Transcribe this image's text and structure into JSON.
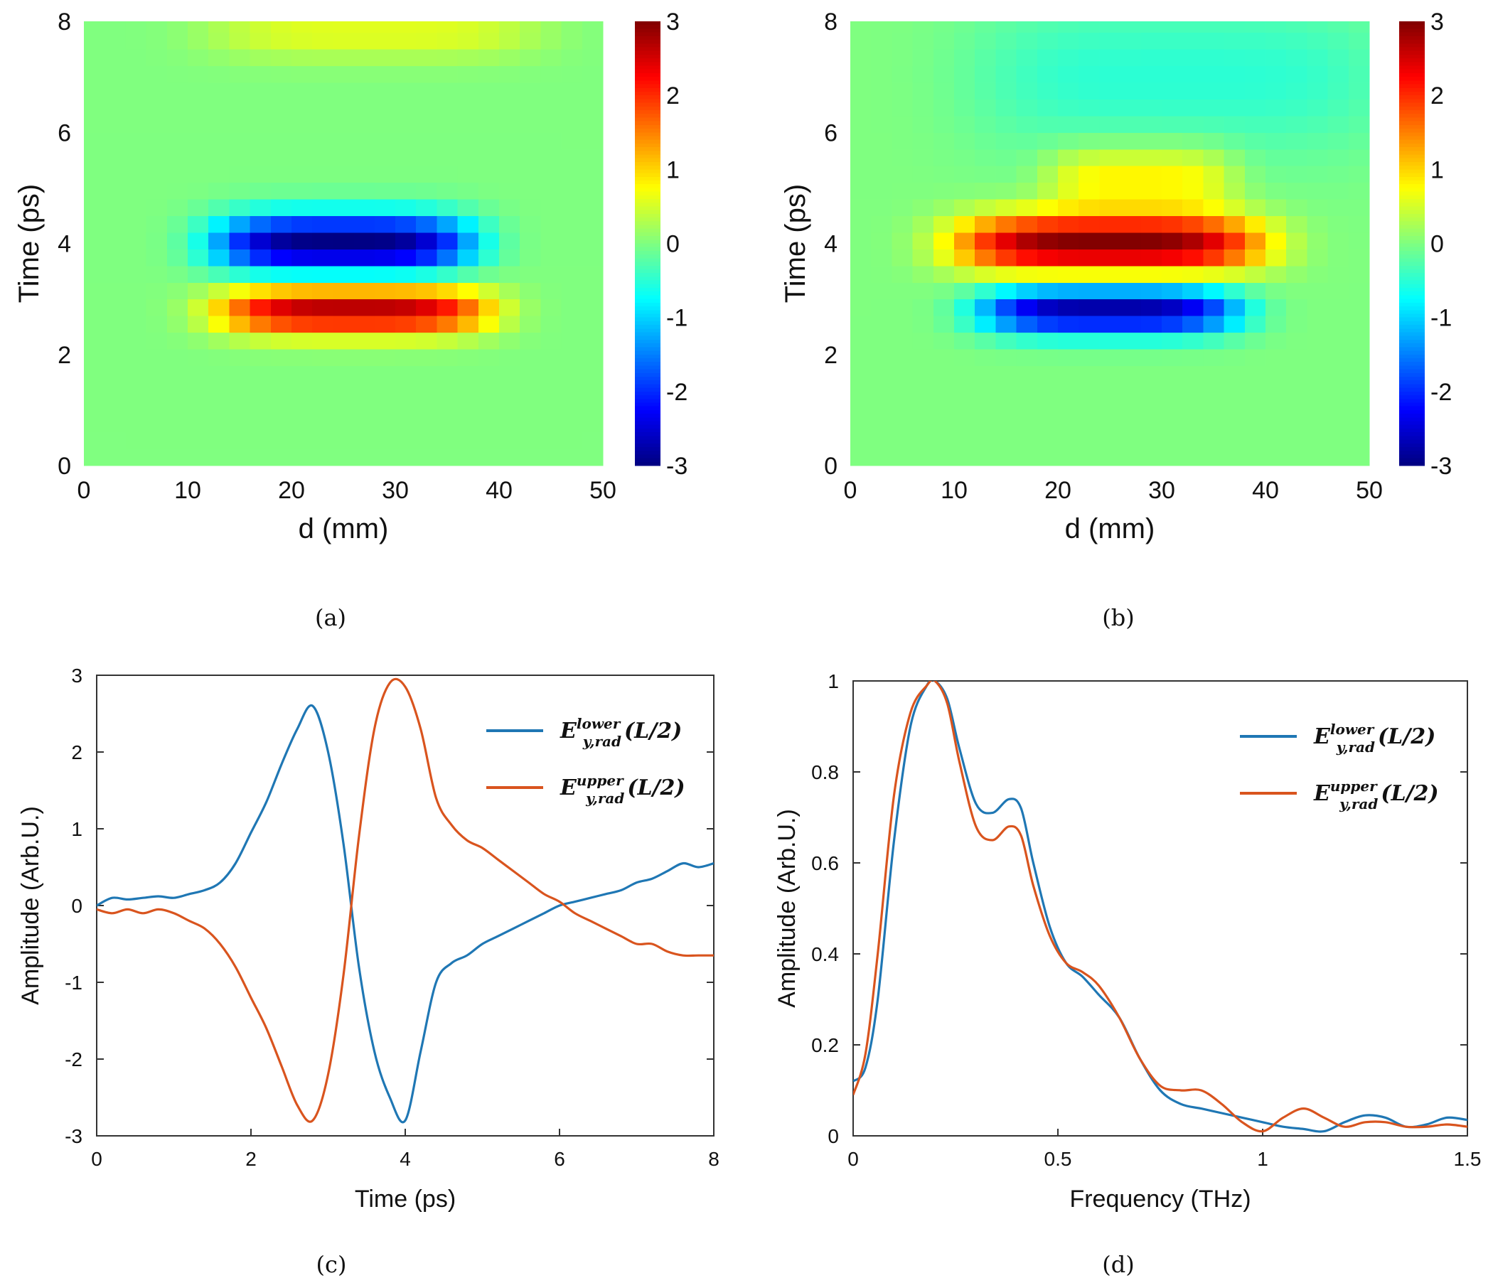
{
  "chart_data": [
    {
      "id": "a",
      "type": "heatmap",
      "caption": "(a)",
      "xlabel": "d (mm)",
      "ylabel": "Time (ps)",
      "xlim": [
        0,
        50
      ],
      "ylim": [
        0,
        8
      ],
      "xticks": [
        0,
        10,
        20,
        30,
        40,
        50
      ],
      "yticks": [
        0,
        2,
        4,
        6,
        8
      ],
      "colorbar": {
        "min": -3,
        "max": 3,
        "ticks": [
          3,
          2,
          1,
          0,
          -1,
          -2,
          -3
        ],
        "colormap": "jet"
      },
      "grid": {
        "x_step_mm": 2,
        "y_step_ps": 0.3
      },
      "features": [
        {
          "label": "negative lobe",
          "center_d": 25,
          "center_t": 4.0,
          "peak": -3.0,
          "half_width_d": 11,
          "half_height_t": 0.55
        },
        {
          "label": "positive lobe",
          "center_d": 26,
          "center_t": 2.8,
          "peak": 2.7,
          "half_width_d": 11.5,
          "half_height_t": 0.45
        },
        {
          "label": "background band",
          "center_d": 28,
          "center_t": 7.8,
          "peak": 0.6,
          "half_width_d": 14,
          "half_height_t": 0.5
        }
      ]
    },
    {
      "id": "b",
      "type": "heatmap",
      "caption": "(b)",
      "xlabel": "d (mm)",
      "ylabel": "Time (ps)",
      "xlim": [
        0,
        50
      ],
      "ylim": [
        0,
        8
      ],
      "xticks": [
        0,
        10,
        20,
        30,
        40,
        50
      ],
      "yticks": [
        0,
        2,
        4,
        6,
        8
      ],
      "colorbar": {
        "min": -3,
        "max": 3,
        "ticks": [
          3,
          2,
          1,
          0,
          -1,
          -2,
          -3
        ],
        "colormap": "jet"
      },
      "grid": {
        "x_step_mm": 2,
        "y_step_ps": 0.3
      },
      "features": [
        {
          "label": "positive lobe",
          "center_d": 25,
          "center_t": 4.0,
          "peak": 3.0,
          "half_width_d": 13,
          "half_height_t": 0.55
        },
        {
          "label": "negative lobe",
          "center_d": 25,
          "center_t": 2.8,
          "peak": -2.8,
          "half_width_d": 11,
          "half_height_t": 0.45
        },
        {
          "label": "upper tail",
          "center_d": 28,
          "center_t": 5.2,
          "peak": 0.9,
          "half_width_d": 8,
          "half_height_t": 0.6
        },
        {
          "label": "background step",
          "center_d": 32,
          "center_t": 7.0,
          "peak": -0.5,
          "half_width_d": 18,
          "half_height_t": 1.5
        }
      ]
    },
    {
      "id": "c",
      "type": "line",
      "caption": "(c)",
      "xlabel": "Time (ps)",
      "ylabel": "Amplitude (Arb.U.)",
      "xlim": [
        0,
        8
      ],
      "ylim": [
        -3,
        3
      ],
      "xticks": [
        0,
        2,
        4,
        6,
        8
      ],
      "yticks": [
        3,
        2,
        1,
        0,
        -1,
        -2,
        -3
      ],
      "legend": "top-right",
      "series": [
        {
          "name": "lower",
          "legend": {
            "base": "E",
            "sup": "lower",
            "sub": "y,rad",
            "arg": "(L/2)"
          },
          "color": "#1f77b4",
          "x": [
            0,
            0.2,
            0.4,
            0.6,
            0.8,
            1.0,
            1.2,
            1.4,
            1.6,
            1.8,
            2.0,
            2.2,
            2.4,
            2.6,
            2.8,
            3.0,
            3.2,
            3.4,
            3.6,
            3.8,
            4.0,
            4.2,
            4.4,
            4.6,
            4.8,
            5.0,
            5.2,
            5.4,
            5.6,
            5.8,
            6.0,
            6.2,
            6.4,
            6.6,
            6.8,
            7.0,
            7.2,
            7.4,
            7.6,
            7.8,
            8.0
          ],
          "y": [
            0.0,
            0.1,
            0.08,
            0.1,
            0.12,
            0.1,
            0.15,
            0.2,
            0.3,
            0.55,
            0.95,
            1.35,
            1.85,
            2.3,
            2.6,
            2.0,
            0.8,
            -0.8,
            -1.9,
            -2.5,
            -2.8,
            -1.9,
            -1.0,
            -0.75,
            -0.65,
            -0.5,
            -0.4,
            -0.3,
            -0.2,
            -0.1,
            0.0,
            0.05,
            0.1,
            0.15,
            0.2,
            0.3,
            0.35,
            0.45,
            0.55,
            0.5,
            0.55
          ]
        },
        {
          "name": "upper",
          "legend": {
            "base": "E",
            "sup": "upper",
            "sub": "y,rad",
            "arg": "(L/2)"
          },
          "color": "#d9541e",
          "x": [
            0,
            0.2,
            0.4,
            0.6,
            0.8,
            1.0,
            1.2,
            1.4,
            1.6,
            1.8,
            2.0,
            2.2,
            2.4,
            2.6,
            2.8,
            3.0,
            3.2,
            3.4,
            3.6,
            3.8,
            4.0,
            4.2,
            4.4,
            4.6,
            4.8,
            5.0,
            5.2,
            5.4,
            5.6,
            5.8,
            6.0,
            6.2,
            6.4,
            6.6,
            6.8,
            7.0,
            7.2,
            7.4,
            7.6,
            7.8,
            8.0
          ],
          "y": [
            -0.05,
            -0.1,
            -0.05,
            -0.1,
            -0.05,
            -0.1,
            -0.2,
            -0.3,
            -0.5,
            -0.8,
            -1.2,
            -1.6,
            -2.1,
            -2.6,
            -2.8,
            -2.2,
            -0.9,
            0.9,
            2.3,
            2.9,
            2.85,
            2.3,
            1.4,
            1.05,
            0.85,
            0.75,
            0.6,
            0.45,
            0.3,
            0.15,
            0.05,
            -0.1,
            -0.2,
            -0.3,
            -0.4,
            -0.5,
            -0.5,
            -0.6,
            -0.65,
            -0.65,
            -0.65
          ]
        }
      ]
    },
    {
      "id": "d",
      "type": "line",
      "caption": "(d)",
      "xlabel": "Frequency (THz)",
      "ylabel": "Amplitude (Arb.U.)",
      "xlim": [
        0,
        1.5
      ],
      "ylim": [
        0,
        1
      ],
      "xticks": [
        0,
        0.5,
        1,
        1.5
      ],
      "yticks": [
        1,
        0.8,
        0.6,
        0.4,
        0.2,
        0
      ],
      "legend": "top-right",
      "series": [
        {
          "name": "lower",
          "legend": {
            "base": "E",
            "sup": "lower",
            "sub": "y,rad",
            "arg": "(L/2)"
          },
          "color": "#1f77b4",
          "x": [
            0.0,
            0.03,
            0.06,
            0.1,
            0.14,
            0.18,
            0.2,
            0.23,
            0.26,
            0.3,
            0.34,
            0.38,
            0.41,
            0.44,
            0.48,
            0.52,
            0.56,
            0.6,
            0.65,
            0.7,
            0.75,
            0.8,
            0.85,
            0.9,
            0.95,
            1.0,
            1.05,
            1.1,
            1.15,
            1.2,
            1.25,
            1.3,
            1.35,
            1.4,
            1.45,
            1.5
          ],
          "y": [
            0.12,
            0.15,
            0.3,
            0.65,
            0.9,
            0.99,
            1.0,
            0.96,
            0.85,
            0.73,
            0.71,
            0.74,
            0.72,
            0.6,
            0.46,
            0.38,
            0.35,
            0.31,
            0.26,
            0.17,
            0.1,
            0.07,
            0.06,
            0.05,
            0.04,
            0.03,
            0.02,
            0.015,
            0.01,
            0.03,
            0.045,
            0.04,
            0.02,
            0.025,
            0.04,
            0.035
          ]
        },
        {
          "name": "upper",
          "legend": {
            "base": "E",
            "sup": "upper",
            "sub": "y,rad",
            "arg": "(L/2)"
          },
          "color": "#d9541e",
          "x": [
            0.0,
            0.03,
            0.06,
            0.1,
            0.14,
            0.18,
            0.2,
            0.23,
            0.26,
            0.3,
            0.34,
            0.38,
            0.41,
            0.44,
            0.48,
            0.52,
            0.56,
            0.6,
            0.65,
            0.7,
            0.75,
            0.8,
            0.85,
            0.9,
            0.95,
            1.0,
            1.05,
            1.1,
            1.15,
            1.2,
            1.25,
            1.3,
            1.35,
            1.4,
            1.45,
            1.5
          ],
          "y": [
            0.09,
            0.18,
            0.4,
            0.75,
            0.93,
            0.99,
            1.0,
            0.95,
            0.82,
            0.68,
            0.65,
            0.68,
            0.66,
            0.55,
            0.44,
            0.38,
            0.36,
            0.33,
            0.26,
            0.17,
            0.11,
            0.1,
            0.1,
            0.07,
            0.03,
            0.01,
            0.04,
            0.06,
            0.04,
            0.02,
            0.03,
            0.03,
            0.02,
            0.02,
            0.025,
            0.02
          ]
        }
      ]
    }
  ]
}
